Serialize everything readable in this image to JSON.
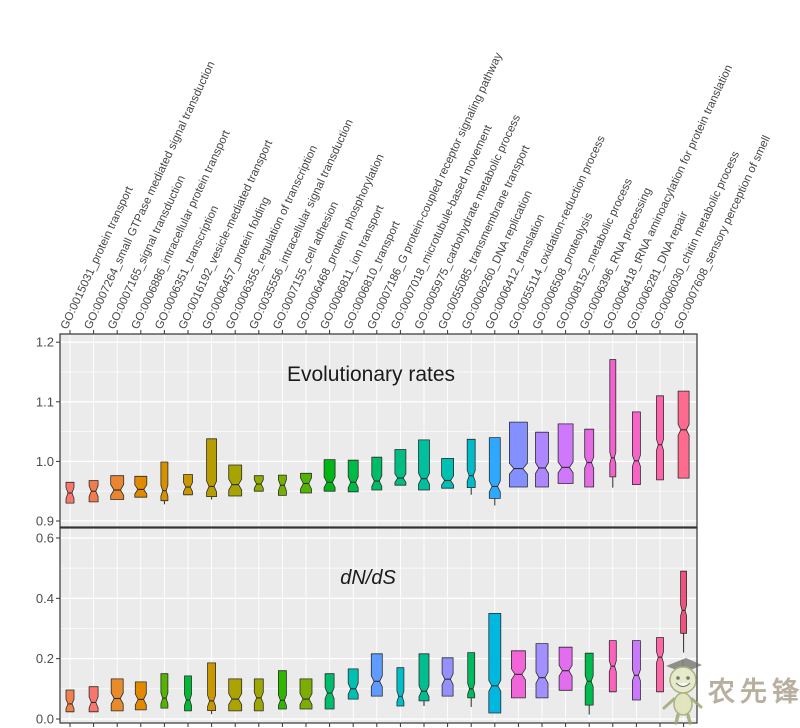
{
  "watermark": {
    "text": "农先锋"
  },
  "chart_data": {
    "type": "boxplot",
    "orientation": "vertical",
    "notched": true,
    "grid": true,
    "panel_bg": "#EBEBEB",
    "grid_color": "#FFFFFF",
    "frame_color": "#333333",
    "tick_text_color": "#4D4D4D",
    "category_text_color": "#454545",
    "title_text_color": "#1A1A1A",
    "categories": [
      "GO:0015031_protein transport",
      "GO:0007264_small GTPase mediated signal transduction",
      "GO:0007165_signal transduction",
      "GO:0006886_intracellular protein transport",
      "GO:0006351_transcription",
      "GO:0016192_vesicle-mediated transport",
      "GO:0006457_protein folding",
      "GO:0006355_regulation of transcription",
      "GO:0035556_intracellular signal transduction",
      "GO:0007155_cell adhesion",
      "GO:0006468_protein phosphorylation",
      "GO:0006811_ion transport",
      "GO:0006810_transport",
      "GO:0007186_G protein-coupled receptor signaling pathway",
      "GO:0007018_microtubule-based movement",
      "GO:0005975_carbohydrate metabolic process",
      "GO:0055085_transmembrane transport",
      "GO:0006260_DNA replication",
      "GO:0006412_translation",
      "GO:0055114_oxidation-reduction process",
      "GO:0006508_proteolysis",
      "GO:0008152_metabolic process",
      "GO:0006396_RNA processing",
      "GO:0006418_tRNA aminoacylation for protein translation",
      "GO:0006281_DNA repair",
      "GO:0006030_chitin metabolic process",
      "GO:0007608_sensory perception of smell"
    ],
    "panels": [
      {
        "title": "Evolutionary rates",
        "title_style": "normal",
        "ylim": [
          0.888,
          1.214
        ],
        "yticks": [
          {
            "label": "0.9",
            "value": 0.9
          },
          {
            "label": "1.0",
            "value": 1.0
          },
          {
            "label": "1.1",
            "value": 1.1
          },
          {
            "label": "1.2",
            "value": 1.2
          }
        ],
        "minor_gridlines": [
          0.95,
          1.05,
          1.15
        ],
        "boxes": [
          {
            "c": "#F8766D",
            "q1": 0.93,
            "m": 0.947,
            "q3": 0.965,
            "lo": null,
            "hi": null,
            "w": 4
          },
          {
            "c": "#F37C4D",
            "q1": 0.932,
            "m": 0.95,
            "q3": 0.968,
            "lo": null,
            "hi": null,
            "w": 4.5
          },
          {
            "c": "#EA8531",
            "q1": 0.936,
            "m": 0.952,
            "q3": 0.976,
            "lo": null,
            "hi": null,
            "w": 6.5
          },
          {
            "c": "#E18A00",
            "q1": 0.94,
            "m": 0.953,
            "q3": 0.975,
            "lo": null,
            "hi": null,
            "w": 6
          },
          {
            "c": "#D69100",
            "q1": 0.934,
            "m": 0.951,
            "q3": 0.999,
            "lo": 0.928,
            "hi": null,
            "w": 3.5
          },
          {
            "c": "#C89800",
            "q1": 0.944,
            "m": 0.957,
            "q3": 0.978,
            "lo": null,
            "hi": null,
            "w": 4.5
          },
          {
            "c": "#B89D00",
            "q1": 0.941,
            "m": 0.958,
            "q3": 1.038,
            "lo": 0.936,
            "hi": null,
            "w": 5
          },
          {
            "c": "#A5A400",
            "q1": 0.942,
            "m": 0.961,
            "q3": 0.994,
            "lo": null,
            "hi": null,
            "w": 6.5
          },
          {
            "c": "#8FAA00",
            "q1": 0.95,
            "m": 0.962,
            "q3": 0.976,
            "lo": null,
            "hi": null,
            "w": 4.5
          },
          {
            "c": "#75AF00",
            "q1": 0.943,
            "m": 0.96,
            "q3": 0.977,
            "lo": null,
            "hi": null,
            "w": 4
          },
          {
            "c": "#52B300",
            "q1": 0.947,
            "m": 0.963,
            "q3": 0.98,
            "lo": null,
            "hi": null,
            "w": 5.5
          },
          {
            "c": "#00B716",
            "q1": 0.95,
            "m": 0.965,
            "q3": 1.003,
            "lo": null,
            "hi": null,
            "w": 5.5
          },
          {
            "c": "#00BA46",
            "q1": 0.949,
            "m": 0.965,
            "q3": 1.002,
            "lo": null,
            "hi": null,
            "w": 5
          },
          {
            "c": "#00BC66",
            "q1": 0.952,
            "m": 0.967,
            "q3": 1.007,
            "lo": null,
            "hi": null,
            "w": 5
          },
          {
            "c": "#00BE83",
            "q1": 0.96,
            "m": 0.972,
            "q3": 1.02,
            "lo": null,
            "hi": null,
            "w": 5.5
          },
          {
            "c": "#00BF9D",
            "q1": 0.952,
            "m": 0.971,
            "q3": 1.036,
            "lo": null,
            "hi": null,
            "w": 5.5
          },
          {
            "c": "#00C0B4",
            "q1": 0.955,
            "m": 0.968,
            "q3": 1.005,
            "lo": null,
            "hi": null,
            "w": 6
          },
          {
            "c": "#00BCC9",
            "q1": 0.956,
            "m": 0.976,
            "q3": 1.037,
            "lo": 0.944,
            "hi": null,
            "w": 4
          },
          {
            "c": "#2FA9FF",
            "q1": 0.938,
            "m": 0.958,
            "q3": 1.04,
            "lo": 0.926,
            "hi": null,
            "w": 5.5
          },
          {
            "c": "#8490FF",
            "q1": 0.957,
            "m": 0.988,
            "q3": 1.066,
            "lo": null,
            "hi": null,
            "w": 9
          },
          {
            "c": "#AE87FF",
            "q1": 0.957,
            "m": 0.989,
            "q3": 1.049,
            "lo": null,
            "hi": null,
            "w": 6.5
          },
          {
            "c": "#CF78FB",
            "q1": 0.963,
            "m": 0.99,
            "q3": 1.063,
            "lo": null,
            "hi": null,
            "w": 7.5
          },
          {
            "c": "#E36BE4",
            "q1": 0.957,
            "m": 0.998,
            "q3": 1.054,
            "lo": null,
            "hi": null,
            "w": 4.5
          },
          {
            "c": "#F162CC",
            "q1": 0.974,
            "m": 1.006,
            "q3": 1.171,
            "lo": 0.956,
            "hi": null,
            "w": 3
          },
          {
            "c": "#F863C6",
            "q1": 0.961,
            "m": 1.001,
            "q3": 1.083,
            "lo": null,
            "hi": null,
            "w": 4
          },
          {
            "c": "#FF64AB",
            "q1": 0.969,
            "m": 1.028,
            "q3": 1.11,
            "lo": null,
            "hi": null,
            "w": 3.5
          },
          {
            "c": "#FF6B8F",
            "q1": 0.972,
            "m": 1.053,
            "q3": 1.118,
            "lo": null,
            "hi": null,
            "w": 5.5
          }
        ]
      },
      {
        "title": "dN/dS",
        "title_style": "italic",
        "ylim": [
          -0.013,
          0.632
        ],
        "yticks": [
          {
            "label": "0.0",
            "value": 0.0
          },
          {
            "label": "0.2",
            "value": 0.2
          },
          {
            "label": "0.4",
            "value": 0.4
          },
          {
            "label": "0.6",
            "value": 0.6
          }
        ],
        "minor_gridlines": [
          0.1,
          0.3,
          0.5
        ],
        "boxes": [
          {
            "c": "#F0814B",
            "q1": 0.024,
            "m": 0.05,
            "q3": 0.096,
            "lo": null,
            "hi": null,
            "w": 4
          },
          {
            "c": "#F8766D",
            "q1": 0.024,
            "m": 0.055,
            "q3": 0.107,
            "lo": null,
            "hi": null,
            "w": 4.5
          },
          {
            "c": "#E98A2B",
            "q1": 0.027,
            "m": 0.068,
            "q3": 0.133,
            "lo": null,
            "hi": null,
            "w": 6
          },
          {
            "c": "#E18A00",
            "q1": 0.03,
            "m": 0.065,
            "q3": 0.123,
            "lo": null,
            "hi": null,
            "w": 5.5
          },
          {
            "c": "#56B400",
            "q1": 0.036,
            "m": 0.069,
            "q3": 0.15,
            "lo": null,
            "hi": null,
            "w": 3.5
          },
          {
            "c": "#00B934",
            "q1": 0.027,
            "m": 0.063,
            "q3": 0.143,
            "lo": null,
            "hi": null,
            "w": 3.5
          },
          {
            "c": "#C89800",
            "q1": 0.028,
            "m": 0.06,
            "q3": 0.186,
            "lo": 0.016,
            "hi": null,
            "w": 4
          },
          {
            "c": "#ACA300",
            "q1": 0.027,
            "m": 0.066,
            "q3": 0.133,
            "lo": null,
            "hi": null,
            "w": 6.5
          },
          {
            "c": "#9CA700",
            "q1": 0.027,
            "m": 0.07,
            "q3": 0.133,
            "lo": null,
            "hi": null,
            "w": 4.5
          },
          {
            "c": "#2FB600",
            "q1": 0.033,
            "m": 0.062,
            "q3": 0.16,
            "lo": null,
            "hi": null,
            "w": 4
          },
          {
            "c": "#7BAE00",
            "q1": 0.033,
            "m": 0.066,
            "q3": 0.133,
            "lo": null,
            "hi": null,
            "w": 6
          },
          {
            "c": "#00BD6D",
            "q1": 0.033,
            "m": 0.086,
            "q3": 0.15,
            "lo": null,
            "hi": null,
            "w": 4.5
          },
          {
            "c": "#00C0B3",
            "q1": 0.066,
            "m": 0.1,
            "q3": 0.166,
            "lo": null,
            "hi": null,
            "w": 5
          },
          {
            "c": "#5E9DFF",
            "q1": 0.076,
            "m": 0.125,
            "q3": 0.216,
            "lo": null,
            "hi": null,
            "w": 5.5
          },
          {
            "c": "#00BFC8",
            "q1": 0.043,
            "m": 0.075,
            "q3": 0.17,
            "lo": null,
            "hi": null,
            "w": 3.5
          },
          {
            "c": "#00BE8F",
            "q1": 0.06,
            "m": 0.092,
            "q3": 0.216,
            "lo": 0.043,
            "hi": null,
            "w": 5
          },
          {
            "c": "#9590FF",
            "q1": 0.076,
            "m": 0.132,
            "q3": 0.203,
            "lo": null,
            "hi": null,
            "w": 5.5
          },
          {
            "c": "#00BA5E",
            "q1": 0.07,
            "m": 0.1,
            "q3": 0.22,
            "lo": 0.04,
            "hi": null,
            "w": 3.5
          },
          {
            "c": "#00B7E0",
            "q1": 0.02,
            "m": 0.11,
            "q3": 0.35,
            "lo": null,
            "hi": null,
            "w": 6
          },
          {
            "c": "#F265D8",
            "q1": 0.07,
            "m": 0.148,
            "q3": 0.226,
            "lo": null,
            "hi": null,
            "w": 7
          },
          {
            "c": "#A48FFF",
            "q1": 0.07,
            "m": 0.137,
            "q3": 0.25,
            "lo": null,
            "hi": null,
            "w": 6
          },
          {
            "c": "#E36DEF",
            "q1": 0.095,
            "m": 0.16,
            "q3": 0.238,
            "lo": null,
            "hi": null,
            "w": 6.5
          },
          {
            "c": "#00BB4E",
            "q1": 0.046,
            "m": 0.125,
            "q3": 0.218,
            "lo": 0.015,
            "hi": null,
            "w": 4
          },
          {
            "c": "#FA62BD",
            "q1": 0.09,
            "m": 0.175,
            "q3": 0.26,
            "lo": null,
            "hi": null,
            "w": 3.5
          },
          {
            "c": "#CB79FC",
            "q1": 0.063,
            "m": 0.145,
            "q3": 0.26,
            "lo": null,
            "hi": null,
            "w": 4
          },
          {
            "c": "#FF66A8",
            "q1": 0.09,
            "m": 0.205,
            "q3": 0.27,
            "lo": null,
            "hi": null,
            "w": 3.5
          },
          {
            "c": "#F0527E",
            "q1": 0.284,
            "m": 0.36,
            "q3": 0.49,
            "lo": 0.22,
            "hi": null,
            "w": 3
          }
        ]
      }
    ]
  }
}
